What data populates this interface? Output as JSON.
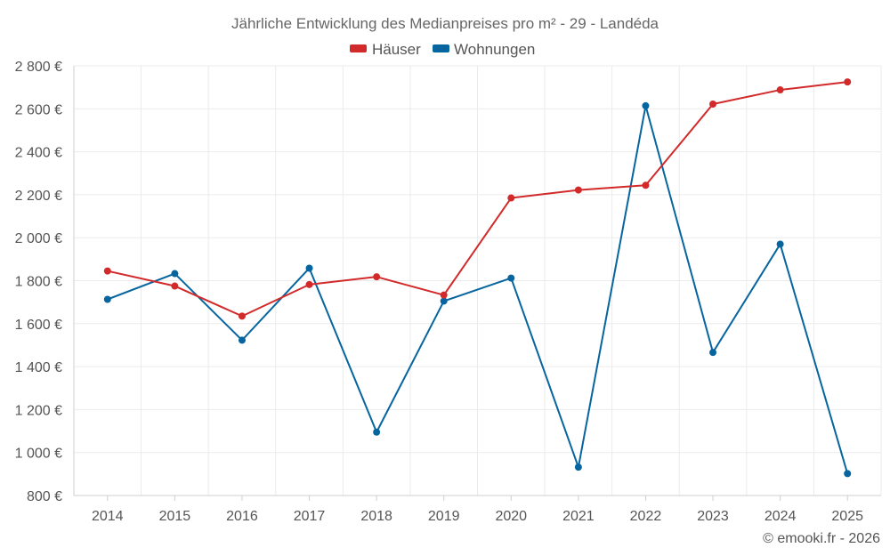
{
  "chart_data": {
    "type": "line",
    "title": "Jährliche Entwicklung des Medianpreises pro m² - 29 - Landéda",
    "categories": [
      "2014",
      "2015",
      "2016",
      "2017",
      "2018",
      "2019",
      "2020",
      "2021",
      "2022",
      "2023",
      "2024",
      "2025"
    ],
    "series": [
      {
        "name": "Häuser",
        "color": "#d22a2a",
        "values": [
          1845,
          1775,
          1635,
          1782,
          1818,
          1733,
          2185,
          2222,
          2244,
          2622,
          2688,
          2725
        ]
      },
      {
        "name": "Wohnungen",
        "color": "#06659f",
        "values": [
          1713,
          1833,
          1523,
          1858,
          1095,
          1705,
          1812,
          932,
          2614,
          1466,
          1970,
          902
        ]
      }
    ],
    "ylim": [
      800,
      2800
    ],
    "yticks": [
      800,
      1000,
      1200,
      1400,
      1600,
      1800,
      2000,
      2200,
      2400,
      2600,
      2800
    ],
    "ytick_labels": [
      "800 €",
      "1 000 €",
      "1 200 €",
      "1 400 €",
      "1 600 €",
      "1 800 €",
      "2 000 €",
      "2 200 €",
      "2 400 €",
      "2 600 €",
      "2 800 €"
    ],
    "xlabel": "",
    "ylabel": "",
    "grid": true,
    "legend_position": "top-center",
    "credit": "© emooki.fr - 2026"
  }
}
